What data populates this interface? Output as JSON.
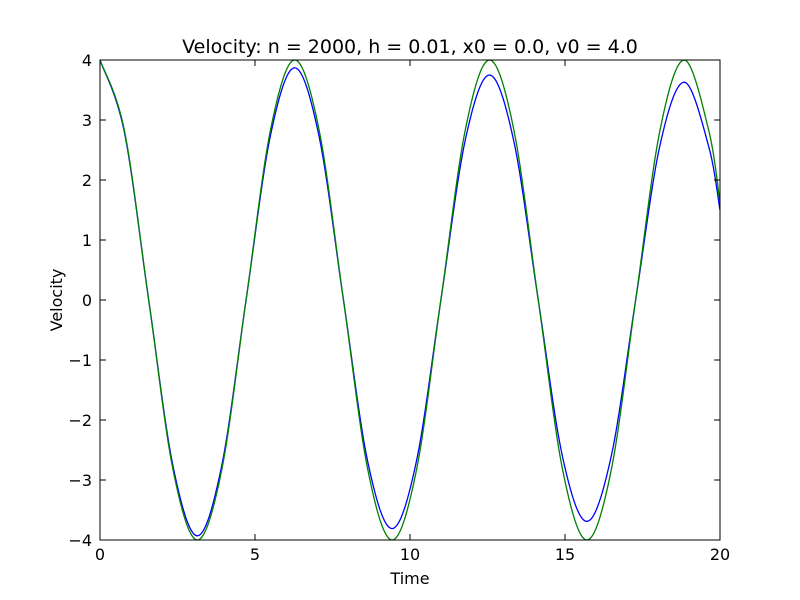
{
  "chart_data": {
    "type": "line",
    "title": "Velocity: n = 2000, h = 0.01, x0 = 0.0, v0 = 4.0",
    "xlabel": "Time",
    "ylabel": "Velocity",
    "xlim": [
      0,
      20
    ],
    "ylim": [
      -4,
      4
    ],
    "xticks": [
      0,
      5,
      10,
      15,
      20
    ],
    "xtick_labels": [
      "0",
      "5",
      "10",
      "15",
      "20"
    ],
    "yticks": [
      -4,
      -3,
      -2,
      -1,
      0,
      1,
      2,
      3,
      4
    ],
    "ytick_labels": [
      "−4",
      "−3",
      "−2",
      "−1",
      "0",
      "1",
      "2",
      "3",
      "4"
    ],
    "grid": false,
    "series": [
      {
        "color": "#0000ff",
        "x": [
          0,
          0.785,
          1.571,
          2.356,
          3.142,
          3.927,
          4.712,
          5.498,
          6.283,
          7.069,
          7.854,
          8.639,
          9.425,
          10.21,
          10.996,
          11.781,
          12.566,
          13.352,
          14.137,
          14.923,
          15.708,
          16.493,
          17.279,
          18.064,
          18.85,
          19.635,
          20
        ],
        "y": [
          4.0,
          2.8,
          0,
          -2.77,
          -3.93,
          -2.76,
          0,
          2.74,
          3.87,
          2.72,
          0,
          -2.7,
          -3.81,
          -2.68,
          0,
          2.66,
          3.75,
          2.64,
          0,
          -2.62,
          -3.69,
          -2.6,
          0,
          2.58,
          3.63,
          2.56,
          1.5
        ]
      },
      {
        "color": "#008000",
        "x": [
          0,
          0.785,
          1.571,
          2.356,
          3.142,
          3.927,
          4.712,
          5.498,
          6.283,
          7.069,
          7.854,
          8.639,
          9.425,
          10.21,
          10.996,
          11.781,
          12.566,
          13.352,
          14.137,
          14.923,
          15.708,
          16.493,
          17.279,
          18.064,
          18.85,
          19.635,
          20
        ],
        "y": [
          4.0,
          2.83,
          0,
          -2.83,
          -4.0,
          -2.83,
          0,
          2.83,
          4.0,
          2.83,
          0,
          -2.83,
          -4.0,
          -2.83,
          0,
          2.83,
          4.0,
          2.83,
          0,
          -2.83,
          -4.0,
          -2.83,
          0,
          2.83,
          4.0,
          2.83,
          1.63
        ]
      }
    ]
  }
}
